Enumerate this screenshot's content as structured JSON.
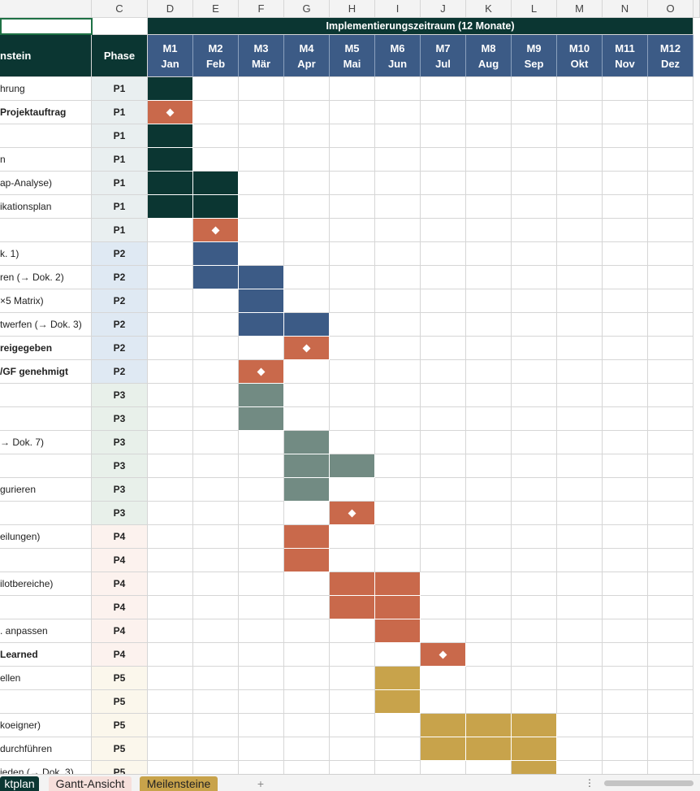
{
  "columns": [
    "C",
    "D",
    "E",
    "F",
    "G",
    "H",
    "I",
    "J",
    "K",
    "L",
    "M",
    "N",
    "O"
  ],
  "header": {
    "title": "Implementierungszeitraum (12 Monate)",
    "task_header": "nstein",
    "phase_header": "Phase"
  },
  "months": [
    {
      "code": "M1",
      "name": "Jan"
    },
    {
      "code": "M2",
      "name": "Feb"
    },
    {
      "code": "M3",
      "name": "Mär"
    },
    {
      "code": "M4",
      "name": "Apr"
    },
    {
      "code": "M5",
      "name": "Mai"
    },
    {
      "code": "M6",
      "name": "Jun"
    },
    {
      "code": "M7",
      "name": "Jul"
    },
    {
      "code": "M8",
      "name": "Aug"
    },
    {
      "code": "M9",
      "name": "Sep"
    },
    {
      "code": "M10",
      "name": "Okt"
    },
    {
      "code": "M11",
      "name": "Nov"
    },
    {
      "code": "M12",
      "name": "Dez"
    }
  ],
  "phases": [
    {
      "label": "P1",
      "bar": "#0b3632",
      "cell": "#e9eff0"
    },
    {
      "label": "P2",
      "bar": "#3c5b86",
      "cell": "#dfe9f3"
    },
    {
      "label": "P3",
      "bar": "#728b83",
      "cell": "#e8f0ea"
    },
    {
      "label": "P4",
      "bar": "#c9694b",
      "cell": "#fcf2ee"
    },
    {
      "label": "P5",
      "bar": "#c8a34b",
      "cell": "#fbf7ec"
    }
  ],
  "milestone_color": "#c9694b",
  "rows": [
    {
      "task": "hrung",
      "phase": 0,
      "span": [
        1,
        1
      ]
    },
    {
      "task": "Projektauftrag",
      "phase": 0,
      "milestone": 1
    },
    {
      "phase": 0,
      "span": [
        1,
        1
      ]
    },
    {
      "task": "n",
      "phase": 0,
      "span": [
        1,
        1
      ]
    },
    {
      "task": "ap-Analyse)",
      "phase": 0,
      "span": [
        1,
        2
      ]
    },
    {
      "task": "ikationsplan",
      "phase": 0,
      "span": [
        1,
        2
      ]
    },
    {
      "phase": 0,
      "milestone": 2
    },
    {
      "task": "k. 1)",
      "phase": 1,
      "span": [
        2,
        2
      ]
    },
    {
      "task": "ren (→ Dok. 2)",
      "phase": 1,
      "span": [
        2,
        3
      ]
    },
    {
      "task": "×5 Matrix)",
      "phase": 1,
      "span": [
        3,
        3
      ]
    },
    {
      "task": "twerfen (→ Dok. 3)",
      "phase": 1,
      "span": [
        3,
        4
      ]
    },
    {
      "task": "reigegeben",
      "phase": 1,
      "milestone": 4
    },
    {
      "task": "/GF genehmigt",
      "phase": 1,
      "milestone": 3
    },
    {
      "phase": 2,
      "span": [
        3,
        3
      ]
    },
    {
      "phase": 2,
      "span": [
        3,
        3
      ]
    },
    {
      "task": "→ Dok. 7)",
      "phase": 2,
      "span": [
        4,
        4
      ]
    },
    {
      "phase": 2,
      "span": [
        4,
        5
      ]
    },
    {
      "task": "gurieren",
      "phase": 2,
      "span": [
        4,
        4
      ]
    },
    {
      "phase": 2,
      "milestone": 5
    },
    {
      "task": "eilungen)",
      "phase": 3,
      "span": [
        4,
        4
      ]
    },
    {
      "phase": 3,
      "span": [
        4,
        4
      ]
    },
    {
      "task": "ilotbereiche)",
      "phase": 3,
      "span": [
        5,
        6
      ]
    },
    {
      "phase": 3,
      "span": [
        5,
        6
      ]
    },
    {
      "task": ". anpassen",
      "phase": 3,
      "span": [
        6,
        6
      ]
    },
    {
      "task": "Learned",
      "phase": 3,
      "milestone": 7
    },
    {
      "task": "ellen",
      "phase": 4,
      "span": [
        6,
        6
      ]
    },
    {
      "phase": 4,
      "span": [
        6,
        6
      ]
    },
    {
      "task": "koeigner)",
      "phase": 4,
      "span": [
        7,
        9
      ]
    },
    {
      "task": "durchführen",
      "phase": 4,
      "span": [
        7,
        9
      ]
    },
    {
      "task": "ieden (→ Dok. 3)",
      "phase": 4,
      "span": [
        9,
        9
      ]
    }
  ],
  "tabs": [
    "ktplan",
    "Gantt-Ansicht",
    "Meilensteine"
  ],
  "add_tab": "+"
}
